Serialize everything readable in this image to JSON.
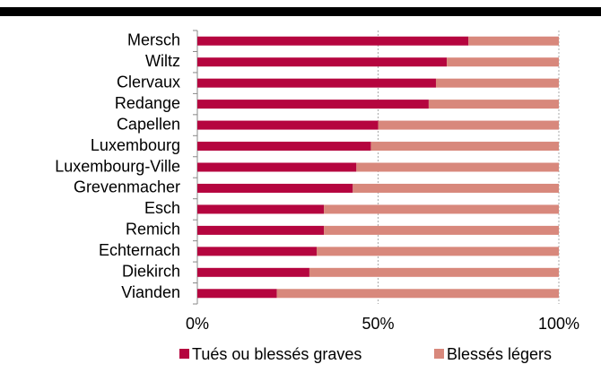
{
  "chart_data": {
    "type": "stacked-bar-horizontal",
    "categories": [
      "Mersch",
      "Wiltz",
      "Clervaux",
      "Redange",
      "Capellen",
      "Luxembourg",
      "Luxembourg-Ville",
      "Grevenmacher",
      "Esch",
      "Remich",
      "Echternach",
      "Diekirch",
      "Vianden"
    ],
    "series": [
      {
        "name": "Tués ou blessés graves",
        "color": "#b5053f",
        "values": [
          75,
          69,
          66,
          64,
          50,
          48,
          44,
          43,
          35,
          35,
          33,
          31,
          22
        ]
      },
      {
        "name": "Blessés légers",
        "color": "#d8887c",
        "values": [
          25,
          31,
          34,
          36,
          50,
          52,
          56,
          57,
          65,
          65,
          67,
          69,
          78
        ]
      }
    ],
    "xlim": [
      0,
      100
    ],
    "xticks": [
      {
        "value": 0,
        "label": "0%"
      },
      {
        "value": 50,
        "label": "50%"
      },
      {
        "value": 100,
        "label": "100%"
      }
    ],
    "grid": true,
    "legend": "bottom"
  }
}
